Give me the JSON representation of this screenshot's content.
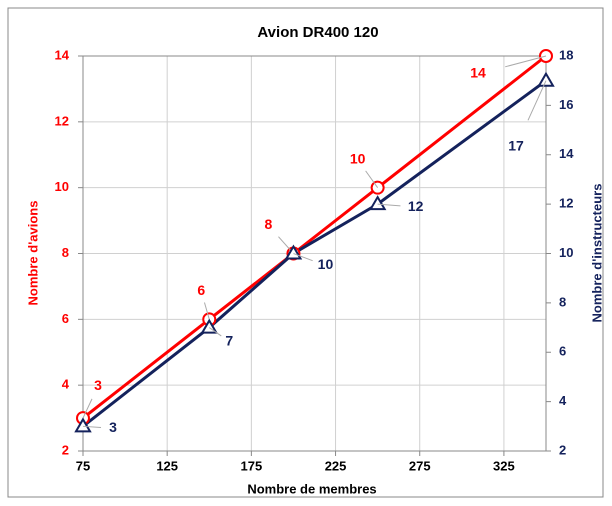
{
  "chart_data": {
    "type": "line",
    "title": "Avion DR400 120",
    "x_label": "Nombre de membres",
    "y_label": "Nombre d'avions",
    "y2_label": "Nombre d'instructeurs",
    "x": [
      75,
      150,
      200,
      250,
      350
    ],
    "xlim": [
      75,
      350
    ],
    "xticks": [
      75,
      125,
      175,
      225,
      275,
      325
    ],
    "ylim": [
      2,
      14
    ],
    "yticks": [
      2,
      4,
      6,
      8,
      10,
      12,
      14
    ],
    "y2lim": [
      2,
      18
    ],
    "y2ticks": [
      2,
      4,
      6,
      8,
      10,
      12,
      14,
      16,
      18
    ],
    "grid": true,
    "series": [
      {
        "name": "Nombre d'avions",
        "color": "#ff0000",
        "marker": "circle",
        "values": [
          3,
          6,
          8,
          10,
          14
        ]
      },
      {
        "name": "Nombre d'instructeurs",
        "color": "#14225c",
        "marker": "triangle",
        "axis": "y2",
        "values": [
          3,
          7,
          10,
          12,
          17
        ]
      }
    ]
  }
}
